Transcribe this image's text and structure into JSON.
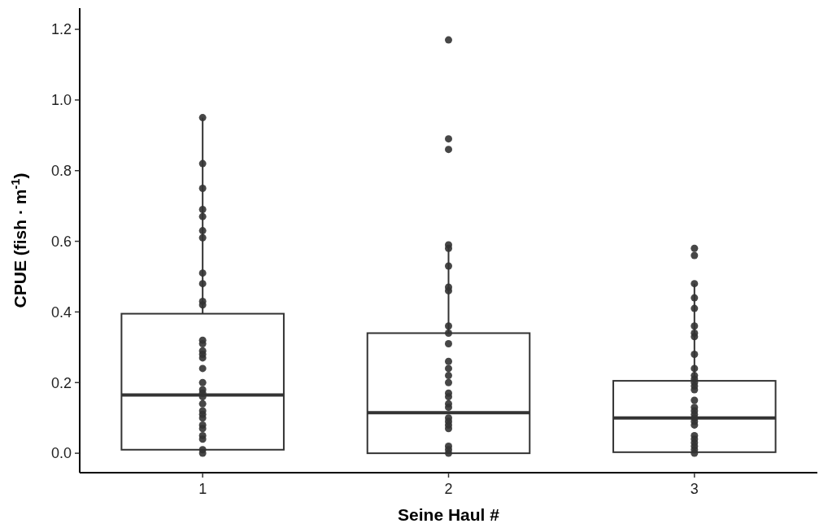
{
  "chart_data": {
    "type": "box",
    "xlabel": "Seine Haul #",
    "ylabel": "CPUE (fish · m$^{-1}$)",
    "categories": [
      "1",
      "2",
      "3"
    ],
    "boxes": [
      {
        "low": 0,
        "q1": 0.01,
        "median": 0.165,
        "q3": 0.395,
        "high": 0.95
      },
      {
        "low": 0,
        "q1": 0,
        "median": 0.115,
        "q3": 0.34,
        "high": 0.59
      },
      {
        "low": 0,
        "q1": 0.003,
        "median": 0.1,
        "q3": 0.205,
        "high": 0.48
      }
    ],
    "series": [
      {
        "type": "scatter",
        "color": "#333333",
        "x": [
          "1",
          "1",
          "1",
          "1",
          "1",
          "1",
          "1",
          "1",
          "1",
          "1",
          "1",
          "1",
          "1",
          "1",
          "1",
          "1",
          "1",
          "1",
          "1",
          "1",
          "1",
          "1",
          "1",
          "1",
          "1",
          "1",
          "1",
          "1",
          "1",
          "1",
          "1",
          "2",
          "2",
          "2",
          "2",
          "2",
          "2",
          "2",
          "2",
          "2",
          "2",
          "2",
          "2",
          "2",
          "2",
          "2",
          "2",
          "2",
          "2",
          "2",
          "2",
          "2",
          "2",
          "2",
          "2",
          "2",
          "2",
          "3",
          "3",
          "3",
          "3",
          "3",
          "3",
          "3",
          "3",
          "3",
          "3",
          "3",
          "3",
          "3",
          "3",
          "3",
          "3",
          "3",
          "3",
          "3",
          "3",
          "3",
          "3",
          "3",
          "3",
          "3",
          "3",
          "3",
          "3"
        ],
        "values": [
          0.95,
          0.82,
          0.75,
          0.69,
          0.67,
          0.63,
          0.61,
          0.51,
          0.48,
          0.43,
          0.42,
          0.32,
          0.31,
          0.29,
          0.28,
          0.27,
          0.24,
          0.2,
          0.18,
          0.17,
          0.16,
          0.14,
          0.12,
          0.11,
          0.1,
          0.08,
          0.07,
          0.05,
          0.04,
          0.01,
          0,
          1.17,
          0.89,
          0.86,
          0.59,
          0.58,
          0.53,
          0.47,
          0.46,
          0.36,
          0.34,
          0.31,
          0.26,
          0.24,
          0.22,
          0.2,
          0.17,
          0.16,
          0.14,
          0.13,
          0.1,
          0.09,
          0.08,
          0.07,
          0.02,
          0.01,
          0,
          0.58,
          0.56,
          0.48,
          0.44,
          0.41,
          0.36,
          0.34,
          0.33,
          0.28,
          0.24,
          0.22,
          0.21,
          0.2,
          0.19,
          0.18,
          0.15,
          0.13,
          0.12,
          0.11,
          0.1,
          0.09,
          0.08,
          0.05,
          0.04,
          0.03,
          0.02,
          0.01,
          0
        ]
      }
    ],
    "marker": "circle",
    "ylim": [
      -0.055,
      1.26
    ],
    "yticks": [
      {
        "value": 0,
        "label": "0.0"
      },
      {
        "value": 0.2,
        "label": "0.2"
      },
      {
        "value": 0.4,
        "label": "0.4"
      },
      {
        "value": 0.6,
        "label": "0.6"
      },
      {
        "value": 0.8,
        "label": "0.8"
      },
      {
        "value": 1,
        "label": "1.0"
      },
      {
        "value": 1.2,
        "label": "1.2"
      }
    ],
    "grid": false
  }
}
